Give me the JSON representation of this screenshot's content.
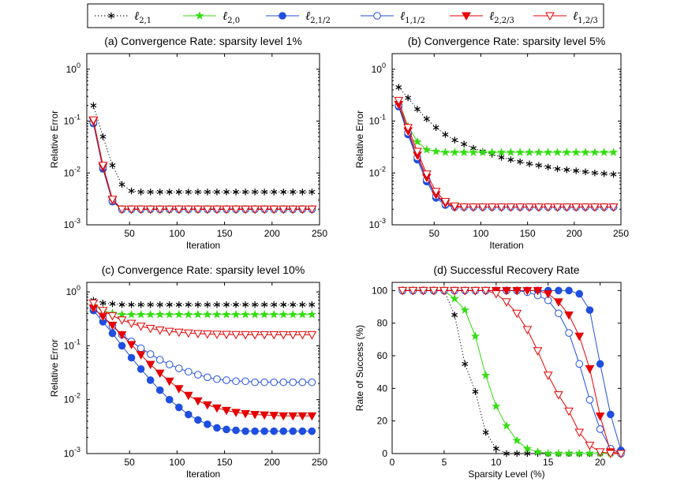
{
  "legend": [
    {
      "id": "l21",
      "label": "ℓ",
      "sub": "2,1",
      "color": "#000000",
      "marker": "asterisk",
      "line": "dotted"
    },
    {
      "id": "l20",
      "label": "ℓ",
      "sub": "2,0",
      "color": "#33dd11",
      "marker": "star",
      "line": "solid"
    },
    {
      "id": "l212",
      "label": "ℓ",
      "sub": "2,1/2",
      "color": "#1f4fe0",
      "marker": "circle-filled",
      "line": "solid"
    },
    {
      "id": "l112",
      "label": "ℓ",
      "sub": "1,1/2",
      "color": "#1f4fe0",
      "marker": "circle-open",
      "line": "solid"
    },
    {
      "id": "l223",
      "label": "ℓ",
      "sub": "2,2/3",
      "color": "#e60000",
      "marker": "triangle-filled",
      "line": "solid"
    },
    {
      "id": "l123",
      "label": "ℓ",
      "sub": "1,2/3",
      "color": "#e60000",
      "marker": "triangle-open",
      "line": "solid"
    }
  ],
  "chart_data": [
    {
      "type": "line",
      "title": "(a) Convergence Rate: sparsity level 1%",
      "xlabel": "Iteration",
      "ylabel": "Relative Error",
      "yscale": "log",
      "xlim": [
        5,
        250
      ],
      "ylim": [
        0.001,
        2
      ],
      "xticks": [
        50,
        100,
        150,
        200,
        250
      ],
      "yticks": [
        {
          "v": 1,
          "exp": "0"
        },
        {
          "v": 0.1,
          "exp": "-1"
        },
        {
          "v": 0.01,
          "exp": "-2"
        },
        {
          "v": 0.001,
          "exp": "-3"
        }
      ],
      "x": [
        12,
        22,
        32,
        42,
        52,
        62,
        72,
        82,
        92,
        102,
        112,
        122,
        132,
        142,
        152,
        162,
        172,
        182,
        192,
        202,
        212,
        222,
        232,
        242
      ],
      "series": [
        {
          "key": "l21",
          "values": [
            0.2,
            0.05,
            0.014,
            0.006,
            0.0045,
            0.0043,
            0.0043,
            0.0043,
            0.0043,
            0.0043,
            0.0043,
            0.0043,
            0.0043,
            0.0043,
            0.0043,
            0.0043,
            0.0043,
            0.0043,
            0.0043,
            0.0043,
            0.0043,
            0.0043,
            0.0043,
            0.0043
          ]
        },
        {
          "key": "l20",
          "values": [
            0.09,
            0.012,
            0.0028,
            0.002,
            0.002,
            0.002,
            0.002,
            0.002,
            0.002,
            0.002,
            0.002,
            0.002,
            0.002,
            0.002,
            0.002,
            0.002,
            0.002,
            0.002,
            0.002,
            0.002,
            0.002,
            0.002,
            0.002,
            0.002
          ]
        },
        {
          "key": "l212",
          "values": [
            0.09,
            0.012,
            0.0028,
            0.002,
            0.002,
            0.002,
            0.002,
            0.002,
            0.002,
            0.002,
            0.002,
            0.002,
            0.002,
            0.002,
            0.002,
            0.002,
            0.002,
            0.002,
            0.002,
            0.002,
            0.002,
            0.002,
            0.002,
            0.002
          ]
        },
        {
          "key": "l112",
          "values": [
            0.095,
            0.013,
            0.0029,
            0.002,
            0.002,
            0.002,
            0.002,
            0.002,
            0.002,
            0.002,
            0.002,
            0.002,
            0.002,
            0.002,
            0.002,
            0.002,
            0.002,
            0.002,
            0.002,
            0.002,
            0.002,
            0.002,
            0.002,
            0.002
          ]
        },
        {
          "key": "l223",
          "values": [
            0.1,
            0.013,
            0.003,
            0.002,
            0.002,
            0.002,
            0.002,
            0.002,
            0.002,
            0.002,
            0.002,
            0.002,
            0.002,
            0.002,
            0.002,
            0.002,
            0.002,
            0.002,
            0.002,
            0.002,
            0.002,
            0.002,
            0.002,
            0.002
          ]
        },
        {
          "key": "l123",
          "values": [
            0.105,
            0.014,
            0.0031,
            0.002,
            0.002,
            0.002,
            0.002,
            0.002,
            0.002,
            0.002,
            0.002,
            0.002,
            0.002,
            0.002,
            0.002,
            0.002,
            0.002,
            0.002,
            0.002,
            0.002,
            0.002,
            0.002,
            0.002,
            0.002
          ]
        }
      ]
    },
    {
      "type": "line",
      "title": "(b) Convergence Rate: sparsity level 5%",
      "xlabel": "Iteration",
      "ylabel": "Relative Error",
      "yscale": "log",
      "xlim": [
        5,
        250
      ],
      "ylim": [
        0.001,
        2
      ],
      "xticks": [
        50,
        100,
        150,
        200,
        250
      ],
      "yticks": [
        {
          "v": 1,
          "exp": "0"
        },
        {
          "v": 0.1,
          "exp": "-1"
        },
        {
          "v": 0.01,
          "exp": "-2"
        },
        {
          "v": 0.001,
          "exp": "-3"
        }
      ],
      "x": [
        12,
        22,
        32,
        42,
        52,
        62,
        72,
        82,
        92,
        102,
        112,
        122,
        132,
        142,
        152,
        162,
        172,
        182,
        192,
        202,
        212,
        222,
        232,
        242
      ],
      "series": [
        {
          "key": "l21",
          "values": [
            0.45,
            0.28,
            0.17,
            0.11,
            0.075,
            0.055,
            0.043,
            0.036,
            0.03,
            0.026,
            0.023,
            0.02,
            0.018,
            0.0165,
            0.015,
            0.014,
            0.013,
            0.012,
            0.0115,
            0.011,
            0.0105,
            0.01,
            0.0097,
            0.0094
          ]
        },
        {
          "key": "l20",
          "values": [
            0.2,
            0.08,
            0.04,
            0.028,
            0.026,
            0.025,
            0.025,
            0.025,
            0.025,
            0.025,
            0.025,
            0.025,
            0.025,
            0.025,
            0.025,
            0.025,
            0.025,
            0.025,
            0.025,
            0.025,
            0.025,
            0.025,
            0.025,
            0.025
          ]
        },
        {
          "key": "l212",
          "values": [
            0.19,
            0.055,
            0.018,
            0.0068,
            0.0033,
            0.0024,
            0.0022,
            0.0022,
            0.0022,
            0.0022,
            0.0022,
            0.0022,
            0.0022,
            0.0022,
            0.0022,
            0.0022,
            0.0022,
            0.0022,
            0.0022,
            0.0022,
            0.0022,
            0.0022,
            0.0022,
            0.0022
          ]
        },
        {
          "key": "l112",
          "values": [
            0.2,
            0.06,
            0.02,
            0.0075,
            0.0036,
            0.0025,
            0.0022,
            0.0022,
            0.0022,
            0.0022,
            0.0022,
            0.0022,
            0.0022,
            0.0022,
            0.0022,
            0.0022,
            0.0022,
            0.0022,
            0.0022,
            0.0022,
            0.0022,
            0.0022,
            0.0022,
            0.0022
          ]
        },
        {
          "key": "l223",
          "values": [
            0.21,
            0.065,
            0.022,
            0.0082,
            0.0038,
            0.0026,
            0.0022,
            0.0022,
            0.0022,
            0.0022,
            0.0022,
            0.0022,
            0.0022,
            0.0022,
            0.0022,
            0.0022,
            0.0022,
            0.0022,
            0.0022,
            0.0022,
            0.0022,
            0.0022,
            0.0022,
            0.0022
          ]
        },
        {
          "key": "l123",
          "values": [
            0.25,
            0.075,
            0.026,
            0.0095,
            0.0044,
            0.0028,
            0.0023,
            0.0022,
            0.0022,
            0.0022,
            0.0022,
            0.0022,
            0.0022,
            0.0022,
            0.0022,
            0.0022,
            0.0022,
            0.0022,
            0.0022,
            0.0022,
            0.0022,
            0.0022,
            0.0022,
            0.0022
          ]
        }
      ]
    },
    {
      "type": "line",
      "title": "(c) Convergence Rate: sparsity level 10%",
      "xlabel": "Iteration",
      "ylabel": "Relative Error",
      "yscale": "log",
      "xlim": [
        5,
        250
      ],
      "ylim": [
        0.001,
        1.5
      ],
      "xticks": [
        50,
        100,
        150,
        200,
        250
      ],
      "yticks": [
        {
          "v": 1,
          "exp": "0"
        },
        {
          "v": 0.1,
          "exp": "-1"
        },
        {
          "v": 0.01,
          "exp": "-2"
        },
        {
          "v": 0.001,
          "exp": "-3"
        }
      ],
      "x": [
        12,
        22,
        32,
        42,
        52,
        62,
        72,
        82,
        92,
        102,
        112,
        122,
        132,
        142,
        152,
        162,
        172,
        182,
        192,
        202,
        212,
        222,
        232,
        242
      ],
      "series": [
        {
          "key": "l21",
          "values": [
            0.7,
            0.62,
            0.6,
            0.58,
            0.58,
            0.58,
            0.58,
            0.58,
            0.58,
            0.58,
            0.58,
            0.58,
            0.58,
            0.58,
            0.58,
            0.58,
            0.58,
            0.58,
            0.58,
            0.58,
            0.58,
            0.58,
            0.58,
            0.58
          ]
        },
        {
          "key": "l20",
          "values": [
            0.55,
            0.45,
            0.4,
            0.38,
            0.38,
            0.38,
            0.38,
            0.38,
            0.38,
            0.38,
            0.38,
            0.38,
            0.38,
            0.38,
            0.38,
            0.38,
            0.38,
            0.38,
            0.38,
            0.38,
            0.38,
            0.38,
            0.38,
            0.38
          ]
        },
        {
          "key": "l212",
          "values": [
            0.45,
            0.28,
            0.17,
            0.1,
            0.06,
            0.037,
            0.023,
            0.015,
            0.01,
            0.0072,
            0.0053,
            0.0042,
            0.0035,
            0.003,
            0.0028,
            0.0027,
            0.0026,
            0.0026,
            0.0026,
            0.0026,
            0.0026,
            0.0026,
            0.0026,
            0.0026
          ]
        },
        {
          "key": "l112",
          "values": [
            0.5,
            0.34,
            0.23,
            0.16,
            0.12,
            0.09,
            0.07,
            0.055,
            0.045,
            0.038,
            0.033,
            0.029,
            0.026,
            0.024,
            0.023,
            0.022,
            0.022,
            0.021,
            0.021,
            0.021,
            0.021,
            0.021,
            0.021,
            0.021
          ]
        },
        {
          "key": "l223",
          "values": [
            0.5,
            0.35,
            0.24,
            0.16,
            0.105,
            0.068,
            0.045,
            0.031,
            0.022,
            0.016,
            0.012,
            0.0095,
            0.008,
            0.007,
            0.0063,
            0.0058,
            0.0055,
            0.0053,
            0.0052,
            0.0051,
            0.005,
            0.005,
            0.005,
            0.005
          ]
        },
        {
          "key": "l123",
          "values": [
            0.62,
            0.45,
            0.36,
            0.3,
            0.26,
            0.23,
            0.21,
            0.195,
            0.185,
            0.178,
            0.172,
            0.168,
            0.165,
            0.163,
            0.162,
            0.161,
            0.16,
            0.16,
            0.16,
            0.16,
            0.16,
            0.16,
            0.16,
            0.16
          ]
        }
      ]
    },
    {
      "type": "line",
      "title": "(d) Successful Recovery Rate",
      "xlabel": "Sparsity Level (%)",
      "ylabel": "Rate of Success (%)",
      "yscale": "linear",
      "xlim": [
        0,
        22
      ],
      "ylim": [
        0,
        105
      ],
      "xticks": [
        0,
        5,
        10,
        15,
        20
      ],
      "yticks": [
        {
          "v": 0,
          "label": "0"
        },
        {
          "v": 20,
          "label": "20"
        },
        {
          "v": 40,
          "label": "40"
        },
        {
          "v": 60,
          "label": "60"
        },
        {
          "v": 80,
          "label": "80"
        },
        {
          "v": 100,
          "label": "100"
        }
      ],
      "x": [
        1,
        2,
        3,
        4,
        5,
        6,
        7,
        8,
        9,
        10,
        11,
        12,
        13,
        14,
        15,
        16,
        17,
        18,
        19,
        20,
        21,
        22
      ],
      "series": [
        {
          "key": "l21",
          "values": [
            100,
            100,
            100,
            100,
            100,
            85,
            55,
            38,
            13,
            3,
            0,
            0,
            0,
            0,
            0,
            0,
            0,
            0,
            0,
            0,
            0,
            0
          ]
        },
        {
          "key": "l20",
          "values": [
            100,
            100,
            100,
            100,
            100,
            95,
            88,
            72,
            48,
            29,
            17,
            8,
            3,
            1,
            0,
            0,
            0,
            0,
            0,
            0,
            0,
            0
          ]
        },
        {
          "key": "l212",
          "values": [
            100,
            100,
            100,
            100,
            100,
            100,
            100,
            100,
            100,
            100,
            100,
            100,
            100,
            100,
            100,
            100,
            100,
            98,
            88,
            55,
            24,
            2
          ]
        },
        {
          "key": "l112",
          "values": [
            100,
            100,
            100,
            100,
            100,
            100,
            100,
            100,
            100,
            100,
            100,
            100,
            99,
            97,
            94,
            86,
            74,
            55,
            33,
            15,
            3,
            0
          ]
        },
        {
          "key": "l223",
          "values": [
            100,
            100,
            100,
            100,
            100,
            100,
            100,
            100,
            100,
            100,
            100,
            100,
            100,
            100,
            98,
            93,
            85,
            72,
            52,
            23,
            1,
            0
          ]
        },
        {
          "key": "l123",
          "values": [
            100,
            100,
            100,
            100,
            100,
            100,
            100,
            100,
            100,
            98,
            93,
            86,
            76,
            63,
            48,
            36,
            26,
            13,
            5,
            1,
            0,
            0
          ]
        }
      ]
    }
  ]
}
